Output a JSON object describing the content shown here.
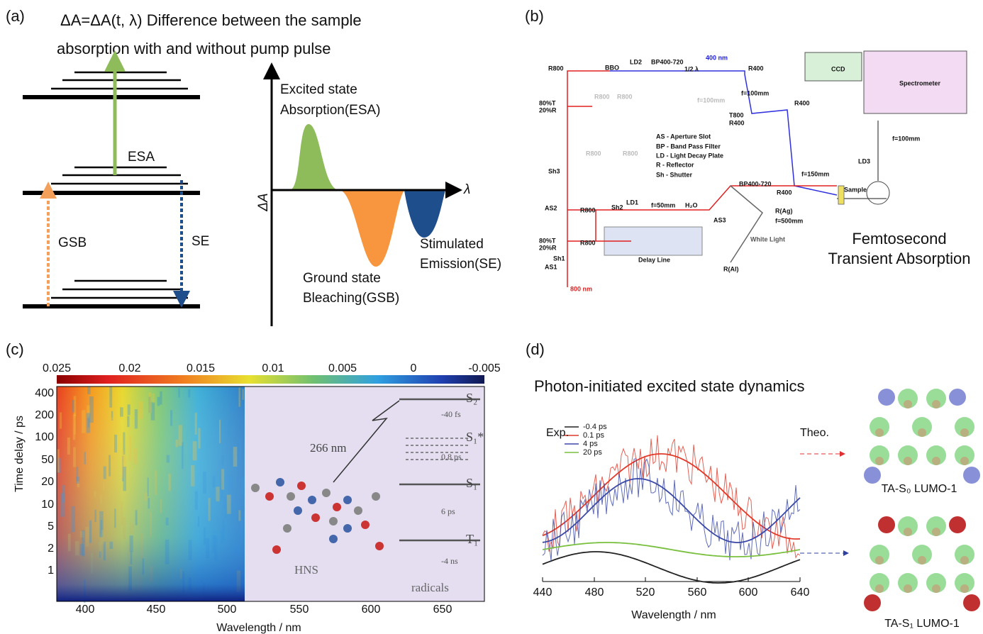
{
  "panels": {
    "a": {
      "label": "(a)",
      "title_line1": "ΔA=ΔA(t, λ) Difference between the sample",
      "title_line2": "absorption with and without pump pulse",
      "esa": "ESA",
      "gsb": "GSB",
      "se": "SE",
      "y_axis": "ΔA",
      "x_axis": "λ",
      "esa_desc": [
        "Excited state",
        "Absorption(ESA)"
      ],
      "gsb_desc": [
        "Ground state",
        "Bleaching(GSB)"
      ],
      "se_desc": [
        "Stimulated",
        "Emission(SE)"
      ]
    },
    "b": {
      "label": "(b)",
      "caption": [
        "Femtosecond",
        "Transient Absorption"
      ],
      "components": [
        "R800",
        "BBO",
        "LD2",
        "BP400-720",
        "1/2 λ",
        "400 nm",
        "R400",
        "f=100mm",
        "CCD",
        "Spectrometer",
        "80%T",
        "20%R",
        "R800",
        "R800",
        "f=100mm",
        "T800",
        "R400",
        "R400",
        "f=100mm",
        "AS - Aperture Slot",
        "BP - Band Pass Filter",
        "LD - Light Decay Plate",
        "R - Reflector",
        "Sh - Shutter",
        "R800",
        "R800",
        "LD3",
        "f=150mm",
        "Sh3",
        "BP400-720",
        "R400",
        "Sample",
        "AS2",
        "R800",
        "Sh2",
        "LD1",
        "f=50mm",
        "H₂O",
        "AS3",
        "R(Ag)",
        "f=500mm",
        "80%T",
        "20%R",
        "R800",
        "White Light",
        "Delay Line",
        "Sh1",
        "R(Al)",
        "AS1",
        "800 nm"
      ]
    },
    "c": {
      "label": "(c)",
      "colorbar_ticks": [
        "0.025",
        "0.02",
        "0.015",
        "0.01",
        "0.005",
        "0",
        "-0.005"
      ],
      "yticks": [
        "400",
        "200",
        "100",
        "50",
        "20",
        "10",
        "5",
        "2",
        "1"
      ],
      "xticks": [
        "400",
        "450",
        "500",
        "550",
        "600",
        "650"
      ],
      "xlabel": "Wavelength / nm",
      "ylabel": "Time delay / ps",
      "inset": {
        "states": [
          "S₂",
          "S₁*",
          "S₁",
          "T₁"
        ],
        "times": [
          "-40 fs",
          "0.8 ps",
          "6 ps",
          "-4 ns"
        ],
        "radicals": "radicals",
        "pump": "266 nm",
        "molecule": "HNS"
      }
    },
    "d": {
      "label": "(d)",
      "title": "Photon-initiated excited state dynamics",
      "exp": "Exp.",
      "theo": "Theo.",
      "legend": [
        "-0.4 ps",
        "0.1 ps",
        "4 ps",
        "20 ps"
      ],
      "xticks": [
        "440",
        "480",
        "520",
        "560",
        "600",
        "640"
      ],
      "xlabel": "Wavelength / nm",
      "orbitals": [
        "TA-S₀ LUMO-1",
        "TA-S₁ LUMO-1"
      ]
    }
  }
}
